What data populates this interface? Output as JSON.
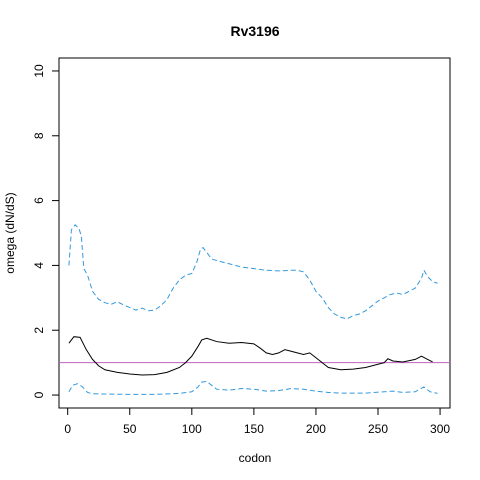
{
  "chart_data": {
    "type": "line",
    "title": "Rv3196",
    "xlabel": "codon",
    "ylabel": "omega (dN/dS)",
    "xlim": [
      -7,
      308
    ],
    "ylim": [
      -0.4,
      10.4
    ],
    "x_ticks": [
      0,
      50,
      100,
      150,
      200,
      250,
      300
    ],
    "y_ticks": [
      0,
      2,
      4,
      6,
      8,
      10
    ],
    "reference_line": {
      "y": 1,
      "color": "#c060c0"
    },
    "grid": false,
    "series": [
      {
        "style": "solid",
        "color": "#000000",
        "points": [
          [
            1,
            1.6
          ],
          [
            5,
            1.8
          ],
          [
            10,
            1.78
          ],
          [
            15,
            1.4
          ],
          [
            20,
            1.1
          ],
          [
            25,
            0.9
          ],
          [
            30,
            0.78
          ],
          [
            40,
            0.7
          ],
          [
            50,
            0.65
          ],
          [
            60,
            0.62
          ],
          [
            70,
            0.63
          ],
          [
            80,
            0.7
          ],
          [
            90,
            0.85
          ],
          [
            95,
            1.0
          ],
          [
            100,
            1.2
          ],
          [
            105,
            1.5
          ],
          [
            108,
            1.7
          ],
          [
            112,
            1.75
          ],
          [
            120,
            1.65
          ],
          [
            130,
            1.6
          ],
          [
            140,
            1.62
          ],
          [
            150,
            1.58
          ],
          [
            155,
            1.45
          ],
          [
            160,
            1.3
          ],
          [
            165,
            1.25
          ],
          [
            170,
            1.3
          ],
          [
            175,
            1.4
          ],
          [
            180,
            1.35
          ],
          [
            185,
            1.3
          ],
          [
            190,
            1.25
          ],
          [
            195,
            1.3
          ],
          [
            200,
            1.15
          ],
          [
            205,
            1.0
          ],
          [
            210,
            0.85
          ],
          [
            220,
            0.78
          ],
          [
            230,
            0.8
          ],
          [
            240,
            0.85
          ],
          [
            250,
            0.95
          ],
          [
            255,
            1.0
          ],
          [
            258,
            1.12
          ],
          [
            262,
            1.05
          ],
          [
            270,
            1.02
          ],
          [
            280,
            1.1
          ],
          [
            285,
            1.2
          ],
          [
            290,
            1.1
          ],
          [
            294,
            1.02
          ]
        ]
      },
      {
        "style": "dashed",
        "color": "#3399dd",
        "points": [
          [
            1,
            4.0
          ],
          [
            3,
            5.1
          ],
          [
            6,
            5.25
          ],
          [
            9,
            5.15
          ],
          [
            11,
            4.9
          ],
          [
            13,
            3.9
          ],
          [
            16,
            3.7
          ],
          [
            20,
            3.2
          ],
          [
            25,
            2.95
          ],
          [
            30,
            2.85
          ],
          [
            35,
            2.8
          ],
          [
            40,
            2.88
          ],
          [
            45,
            2.78
          ],
          [
            50,
            2.7
          ],
          [
            55,
            2.62
          ],
          [
            60,
            2.68
          ],
          [
            65,
            2.6
          ],
          [
            70,
            2.62
          ],
          [
            75,
            2.75
          ],
          [
            80,
            2.95
          ],
          [
            85,
            3.3
          ],
          [
            90,
            3.55
          ],
          [
            95,
            3.7
          ],
          [
            100,
            3.75
          ],
          [
            104,
            4.1
          ],
          [
            107,
            4.5
          ],
          [
            109,
            4.55
          ],
          [
            112,
            4.4
          ],
          [
            116,
            4.2
          ],
          [
            120,
            4.15
          ],
          [
            130,
            4.05
          ],
          [
            140,
            3.95
          ],
          [
            150,
            3.9
          ],
          [
            160,
            3.85
          ],
          [
            170,
            3.83
          ],
          [
            180,
            3.85
          ],
          [
            185,
            3.85
          ],
          [
            190,
            3.8
          ],
          [
            195,
            3.55
          ],
          [
            200,
            3.2
          ],
          [
            205,
            3.0
          ],
          [
            210,
            2.7
          ],
          [
            215,
            2.5
          ],
          [
            220,
            2.4
          ],
          [
            225,
            2.35
          ],
          [
            230,
            2.45
          ],
          [
            235,
            2.5
          ],
          [
            240,
            2.6
          ],
          [
            245,
            2.75
          ],
          [
            250,
            2.9
          ],
          [
            255,
            3.0
          ],
          [
            260,
            3.1
          ],
          [
            265,
            3.15
          ],
          [
            270,
            3.1
          ],
          [
            275,
            3.2
          ],
          [
            280,
            3.3
          ],
          [
            285,
            3.6
          ],
          [
            287,
            3.85
          ],
          [
            290,
            3.65
          ],
          [
            294,
            3.5
          ],
          [
            298,
            3.45
          ]
        ]
      },
      {
        "style": "dashed",
        "color": "#3399dd",
        "points": [
          [
            1,
            0.1
          ],
          [
            4,
            0.3
          ],
          [
            8,
            0.35
          ],
          [
            12,
            0.25
          ],
          [
            16,
            0.08
          ],
          [
            20,
            0.04
          ],
          [
            30,
            0.03
          ],
          [
            50,
            0.02
          ],
          [
            70,
            0.02
          ],
          [
            90,
            0.05
          ],
          [
            100,
            0.1
          ],
          [
            105,
            0.25
          ],
          [
            108,
            0.4
          ],
          [
            112,
            0.42
          ],
          [
            116,
            0.3
          ],
          [
            120,
            0.18
          ],
          [
            130,
            0.15
          ],
          [
            140,
            0.2
          ],
          [
            150,
            0.18
          ],
          [
            160,
            0.12
          ],
          [
            170,
            0.14
          ],
          [
            180,
            0.2
          ],
          [
            190,
            0.18
          ],
          [
            200,
            0.12
          ],
          [
            210,
            0.08
          ],
          [
            220,
            0.06
          ],
          [
            240,
            0.06
          ],
          [
            255,
            0.1
          ],
          [
            262,
            0.12
          ],
          [
            270,
            0.08
          ],
          [
            280,
            0.1
          ],
          [
            287,
            0.25
          ],
          [
            292,
            0.1
          ],
          [
            298,
            0.05
          ]
        ]
      }
    ]
  }
}
